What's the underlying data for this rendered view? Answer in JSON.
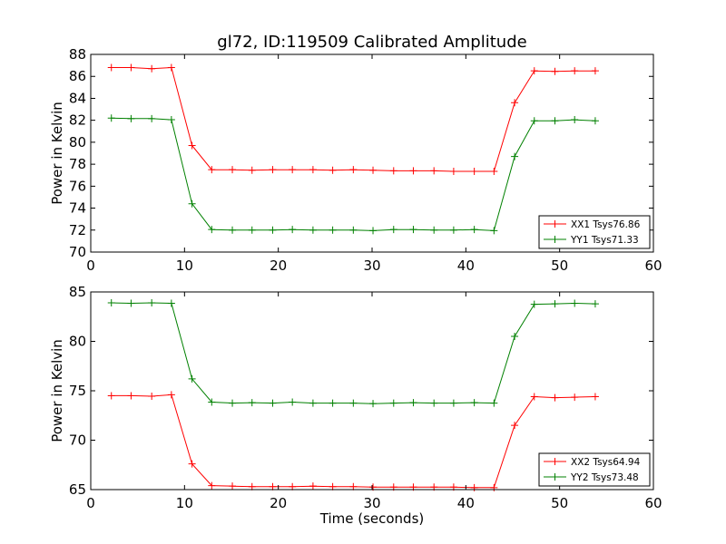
{
  "figure": {
    "title": "gl72, ID:119509 Calibrated Amplitude"
  },
  "chart_data": [
    {
      "type": "line",
      "title": "gl72, ID:119509 Calibrated Amplitude",
      "xlabel": "",
      "ylabel": "Power in Kelvin",
      "xlim": [
        0,
        60
      ],
      "ylim": [
        70,
        88
      ],
      "xticks": [
        0,
        10,
        20,
        30,
        40,
        50,
        60
      ],
      "yticks": [
        70,
        72,
        74,
        76,
        78,
        80,
        82,
        84,
        86,
        88
      ],
      "grid": false,
      "legend_position": "lower-right",
      "x": [
        2.2,
        4.3,
        6.5,
        8.6,
        10.8,
        12.9,
        15.1,
        17.2,
        19.4,
        21.5,
        23.7,
        25.8,
        28.0,
        30.1,
        32.3,
        34.4,
        36.6,
        38.7,
        40.9,
        43.0,
        45.2,
        47.3,
        49.5,
        51.6,
        53.8
      ],
      "series": [
        {
          "name": "XX1 Tsys76.86",
          "color": "#ff0000",
          "values": [
            86.8,
            86.8,
            86.7,
            86.8,
            79.7,
            77.5,
            77.5,
            77.45,
            77.5,
            77.5,
            77.5,
            77.45,
            77.5,
            77.45,
            77.4,
            77.4,
            77.4,
            77.35,
            77.35,
            77.35,
            83.6,
            86.5,
            86.45,
            86.5,
            86.5
          ]
        },
        {
          "name": "YY1 Tsys71.33",
          "color": "#008000",
          "values": [
            82.2,
            82.15,
            82.15,
            82.05,
            74.4,
            72.05,
            72.0,
            72.0,
            72.0,
            72.05,
            72.0,
            72.0,
            72.0,
            71.95,
            72.05,
            72.05,
            72.0,
            72.0,
            72.05,
            71.95,
            78.7,
            81.95,
            81.95,
            82.05,
            81.95
          ]
        }
      ]
    },
    {
      "type": "line",
      "title": "",
      "xlabel": "Time (seconds)",
      "ylabel": "Power in Kelvin",
      "xlim": [
        0,
        60
      ],
      "ylim": [
        65,
        85
      ],
      "xticks": [
        0,
        10,
        20,
        30,
        40,
        50,
        60
      ],
      "yticks": [
        65,
        70,
        75,
        80,
        85
      ],
      "grid": false,
      "legend_position": "lower-right",
      "x": [
        2.2,
        4.3,
        6.5,
        8.6,
        10.8,
        12.9,
        15.1,
        17.2,
        19.4,
        21.5,
        23.7,
        25.8,
        28.0,
        30.1,
        32.3,
        34.4,
        36.6,
        38.7,
        40.9,
        43.0,
        45.2,
        47.3,
        49.5,
        51.6,
        53.8
      ],
      "series": [
        {
          "name": "XX2 Tsys64.94",
          "color": "#ff0000",
          "values": [
            74.5,
            74.5,
            74.45,
            74.6,
            67.6,
            65.4,
            65.35,
            65.3,
            65.3,
            65.3,
            65.35,
            65.3,
            65.3,
            65.25,
            65.25,
            65.25,
            65.25,
            65.25,
            65.2,
            65.2,
            71.5,
            74.4,
            74.3,
            74.35,
            74.4
          ]
        },
        {
          "name": "YY2 Tsys73.48",
          "color": "#008000",
          "values": [
            83.9,
            83.85,
            83.9,
            83.85,
            76.2,
            73.85,
            73.75,
            73.8,
            73.75,
            73.85,
            73.75,
            73.75,
            73.75,
            73.7,
            73.75,
            73.8,
            73.75,
            73.75,
            73.8,
            73.75,
            80.5,
            83.75,
            83.8,
            83.85,
            83.8
          ]
        }
      ]
    }
  ]
}
